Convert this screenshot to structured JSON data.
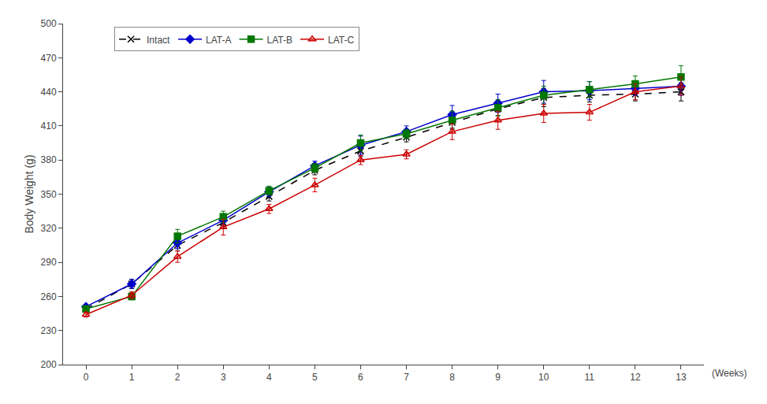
{
  "chart_data": {
    "type": "line",
    "x": [
      0,
      1,
      2,
      3,
      4,
      5,
      6,
      7,
      8,
      9,
      10,
      11,
      12,
      13
    ],
    "series": [
      {
        "name": "Intact",
        "color": "#000000",
        "marker": "x",
        "line_style": "dashed",
        "values": [
          249,
          271,
          305,
          325,
          348,
          371,
          388,
          400,
          413,
          425,
          435,
          437,
          438,
          440
        ],
        "yerr": [
          2,
          4,
          5,
          5,
          4,
          4,
          5,
          4,
          5,
          6,
          8,
          6,
          6,
          8
        ]
      },
      {
        "name": "LAT-A",
        "color": "#0000CC",
        "marker": "diamond",
        "line_style": "solid",
        "values": [
          251,
          271,
          307,
          327,
          352,
          375,
          393,
          405,
          420,
          430,
          440,
          441,
          443,
          445
        ],
        "yerr": [
          2,
          4,
          5,
          5,
          4,
          4,
          8,
          5,
          8,
          8,
          10,
          8,
          6,
          8
        ]
      },
      {
        "name": "LAT-B",
        "color": "#007700",
        "marker": "square",
        "line_style": "solid",
        "values": [
          249,
          260,
          313,
          330,
          353,
          373,
          395,
          403,
          415,
          426,
          437,
          442,
          447,
          453
        ],
        "yerr": [
          2,
          3,
          6,
          5,
          4,
          4,
          7,
          4,
          8,
          7,
          8,
          7,
          7,
          10
        ]
      },
      {
        "name": "LAT-C",
        "color": "#CC0000",
        "marker": "triangle-open",
        "line_style": "solid",
        "values": [
          244,
          261,
          295,
          321,
          337,
          358,
          380,
          385,
          405,
          415,
          421,
          422,
          440,
          445
        ],
        "yerr": [
          2,
          3,
          5,
          7,
          4,
          6,
          4,
          4,
          7,
          8,
          8,
          7,
          7,
          8
        ]
      }
    ],
    "ylabel": "Body Weight (g)",
    "xlabel": "(Weeks)",
    "xlim": [
      -0.5,
      13.5
    ],
    "xticks": [
      0,
      1,
      2,
      3,
      4,
      5,
      6,
      7,
      8,
      9,
      10,
      11,
      12,
      13
    ],
    "ylim": [
      200,
      500
    ],
    "yticks": [
      200,
      230,
      260,
      290,
      320,
      350,
      380,
      410,
      440,
      470,
      500
    ],
    "grid": false,
    "legend": "upper left"
  }
}
